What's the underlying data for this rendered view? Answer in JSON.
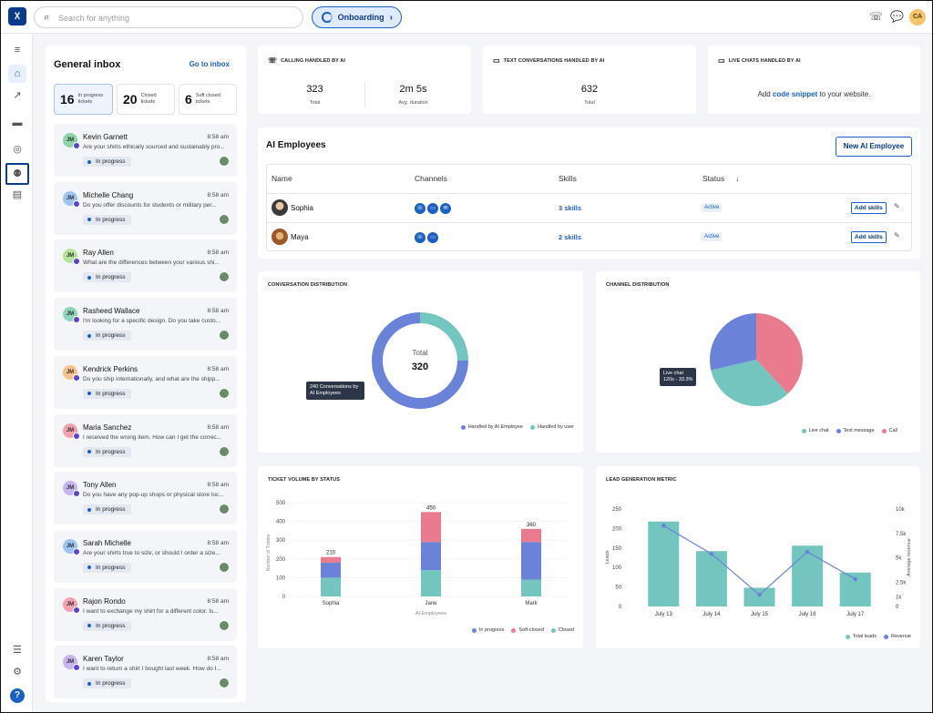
{
  "topbar": {
    "search_placeholder": "Search for anything",
    "onboarding_label": "Onboarding",
    "user_initials": "CA"
  },
  "inbox": {
    "title": "General inbox",
    "go_to_inbox": "Go to inbox",
    "stats": [
      {
        "count": "16",
        "label1": "In progress",
        "label2": "tickets"
      },
      {
        "count": "20",
        "label1": "Closed",
        "label2": "tickets"
      },
      {
        "count": "6",
        "label1": "Soft closed",
        "label2": "tickets"
      }
    ],
    "tickets": [
      {
        "name": "Kevin Garnett",
        "time": "8:58 am",
        "message": "Are your shirts ethically sourced and sustainably pro...",
        "status": "In progress",
        "initials": "JM"
      },
      {
        "name": "Michelle Chang",
        "time": "8:58 am",
        "message": "Do you offer discounts for students or military per...",
        "status": "In progress",
        "initials": "JM"
      },
      {
        "name": "Ray Allen",
        "time": "8:58 am",
        "message": "What are the differences between your various shi...",
        "status": "In progress",
        "initials": "JM"
      },
      {
        "name": "Rasheed Wallace",
        "time": "8:58 am",
        "message": "I'm looking for a specific design. Do you take custo...",
        "status": "In progress",
        "initials": "JM"
      },
      {
        "name": "Kendrick Perkins",
        "time": "8:58 am",
        "message": "Do you ship internationally, and what are the shipp...",
        "status": "In progress",
        "initials": "JM"
      },
      {
        "name": "Maria Sanchez",
        "time": "8:58 am",
        "message": "I received the wrong item. How can I get the correc...",
        "status": "In progress",
        "initials": "JM"
      },
      {
        "name": "Tony Allen",
        "time": "8:58 am",
        "message": "Do you have any pop-up shops or physical store loc...",
        "status": "In progress",
        "initials": "JM"
      },
      {
        "name": "Sarah Michelle",
        "time": "8:58 am",
        "message": "Are your shirts true to size, or should I order a size...",
        "status": "In progress",
        "initials": "JM"
      },
      {
        "name": "Rajon Rondo",
        "time": "8:58 am",
        "message": "I want to exchange my shirt for a different color. Is...",
        "status": "In progress",
        "initials": "JM"
      },
      {
        "name": "Karen Taylor",
        "time": "8:58 am",
        "message": "I want to return a shirt I bought last week. How do I...",
        "status": "In progress",
        "initials": "JM"
      }
    ]
  },
  "metrics": {
    "calling": {
      "title": "CALLING HANDLED BY AI",
      "total": "323",
      "total_label": "Total",
      "duration": "2m 5s",
      "duration_label": "Avg. duration"
    },
    "text": {
      "title": "TEXT CONVERSATIONS HANDLED BY AI",
      "total": "632",
      "total_label": "Total"
    },
    "live": {
      "title": "LIVE CHATS HANDLED BY AI",
      "prefix": "Add",
      "link": "code snippet",
      "suffix": "to your website."
    }
  },
  "ai_employees": {
    "title": "AI Employees",
    "new_button": "New AI Employee",
    "columns": {
      "name": "Name",
      "channels": "Channels",
      "skills": "Skills",
      "status": "Status",
      "sort_icon": "↓"
    },
    "rows": [
      {
        "name": "Sophia",
        "skills": "3 skills",
        "status": "Active",
        "action": "Add skills"
      },
      {
        "name": "Maya",
        "skills": "2 skills",
        "status": "Active",
        "action": "Add skills"
      }
    ]
  },
  "conversation_distribution": {
    "title": "CONVERSATION DISTRIBUTION",
    "center_label": "Total",
    "center_value": "320",
    "tooltip": "240 Conversations by AI Employees",
    "legend": [
      "Handled by AI Employee",
      "Handled by user"
    ]
  },
  "channel_distribution": {
    "title": "CHANNEL DISTRIBUTION",
    "tooltip_title": "Live chat",
    "tooltip_value": "120s - 33.3%",
    "legend": [
      "Live chat",
      "Text message",
      "Call"
    ]
  },
  "ticket_volume": {
    "title": "TICKET VOLUME BY STATUS",
    "ylabel": "Number of Tickets",
    "xlabel": "AI Employees",
    "legend": [
      "In progress",
      "Soft-closed",
      "Closed"
    ]
  },
  "lead_generation": {
    "title": "LEAD GENERATION METRIC",
    "ylabel_left": "Leads",
    "ylabel_right": "Average revenue",
    "legend": [
      "Total leads",
      "Revenue"
    ]
  },
  "colors": {
    "primary": "#1b5fc7",
    "navy": "#0b3a8c",
    "teal": "#72c6bf",
    "indigo": "#6b82d9",
    "pink": "#ea7a8e"
  },
  "chart_data": [
    {
      "type": "pie",
      "title": "CONVERSATION DISTRIBUTION",
      "categories": [
        "Handled by AI Employee",
        "Handled by user"
      ],
      "values": [
        240,
        80
      ]
    },
    {
      "type": "pie",
      "title": "CHANNEL DISTRIBUTION",
      "categories": [
        "Live chat",
        "Text message",
        "Call"
      ],
      "values": [
        33.3,
        28.6,
        38.1
      ]
    },
    {
      "type": "bar",
      "title": "TICKET VOLUME BY STATUS",
      "categories": [
        "Sophia",
        "Jane",
        "Mark"
      ],
      "series": [
        {
          "name": "Closed",
          "values": [
            100,
            140,
            90
          ]
        },
        {
          "name": "In progress",
          "values": [
            80,
            150,
            200
          ]
        },
        {
          "name": "Soft-closed",
          "values": [
            30,
            160,
            70
          ]
        }
      ],
      "totals": [
        "210",
        "450",
        "360"
      ],
      "ylim": [
        0,
        500
      ],
      "yticks": [
        "0",
        "100",
        "200",
        "300",
        "400",
        "500"
      ],
      "xlabel": "AI Employees",
      "ylabel": "Number of Tickets"
    },
    {
      "type": "bar",
      "title": "LEAD GENERATION METRIC",
      "categories": [
        "July 13",
        "July 14",
        "July 15",
        "July 16",
        "July 17"
      ],
      "series": [
        {
          "name": "Total leads",
          "values": [
            218,
            142,
            48,
            156,
            87
          ]
        },
        {
          "name": "Revenue",
          "values": [
            8300,
            5400,
            1200,
            5600,
            2800
          ]
        }
      ],
      "ylim": [
        0,
        250
      ],
      "yticks": [
        "0",
        "50",
        "100",
        "150",
        "200",
        "250"
      ],
      "y2lim": [
        0,
        10000
      ],
      "y2ticks": [
        "0",
        "1k",
        "2.5k",
        "5k",
        "7.5k",
        "10k"
      ],
      "ylabel": "Leads",
      "y2label": "Average revenue"
    }
  ]
}
